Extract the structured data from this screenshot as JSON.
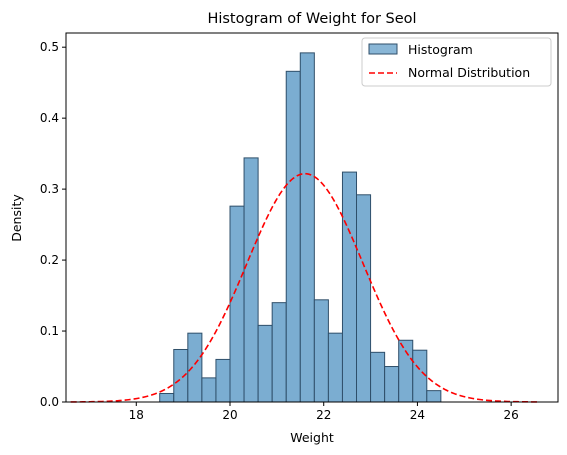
{
  "chart_data": {
    "type": "bar",
    "title": "Histogram of Weight for Seol",
    "xlabel": "Weight",
    "ylabel": "Density",
    "xlim": [
      16.5,
      27.0
    ],
    "ylim": [
      0,
      0.52
    ],
    "x_ticks": [
      18,
      20,
      22,
      24,
      26
    ],
    "x_tick_labels": [
      "18",
      "20",
      "22",
      "24",
      "26"
    ],
    "y_ticks": [
      0.0,
      0.1,
      0.2,
      0.3,
      0.4,
      0.5
    ],
    "y_tick_labels": [
      "0.0",
      "0.1",
      "0.2",
      "0.3",
      "0.4",
      "0.5"
    ],
    "grid": false,
    "legend_position": "top-right",
    "bins": [
      {
        "x0": 18.5,
        "x1": 18.8,
        "density": 0.012
      },
      {
        "x0": 18.8,
        "x1": 19.1,
        "density": 0.074
      },
      {
        "x0": 19.1,
        "x1": 19.4,
        "density": 0.097
      },
      {
        "x0": 19.4,
        "x1": 19.7,
        "density": 0.034
      },
      {
        "x0": 19.7,
        "x1": 20.0,
        "density": 0.06
      },
      {
        "x0": 20.0,
        "x1": 20.3,
        "density": 0.276
      },
      {
        "x0": 20.3,
        "x1": 20.6,
        "density": 0.344
      },
      {
        "x0": 20.6,
        "x1": 20.9,
        "density": 0.108
      },
      {
        "x0": 20.9,
        "x1": 21.2,
        "density": 0.14
      },
      {
        "x0": 21.2,
        "x1": 21.5,
        "density": 0.466
      },
      {
        "x0": 21.5,
        "x1": 21.8,
        "density": 0.492
      },
      {
        "x0": 21.8,
        "x1": 22.1,
        "density": 0.144
      },
      {
        "x0": 22.1,
        "x1": 22.4,
        "density": 0.097
      },
      {
        "x0": 22.4,
        "x1": 22.7,
        "density": 0.324
      },
      {
        "x0": 22.7,
        "x1": 23.0,
        "density": 0.292
      },
      {
        "x0": 23.0,
        "x1": 23.3,
        "density": 0.07
      },
      {
        "x0": 23.3,
        "x1": 23.6,
        "density": 0.05
      },
      {
        "x0": 23.6,
        "x1": 23.9,
        "density": 0.087
      },
      {
        "x0": 23.9,
        "x1": 24.2,
        "density": 0.073
      },
      {
        "x0": 24.2,
        "x1": 24.5,
        "density": 0.016
      }
    ],
    "normal_curve": {
      "mean": 21.6,
      "sd": 1.24,
      "x_min": 16.6,
      "x_max": 26.6
    },
    "series": [
      {
        "name": "Histogram",
        "kind": "histogram",
        "color": "#74a9cf",
        "edge_color": "#2f4f6a"
      },
      {
        "name": "Normal Distribution",
        "kind": "line",
        "color": "#ff0000",
        "style": "dashed"
      }
    ]
  }
}
